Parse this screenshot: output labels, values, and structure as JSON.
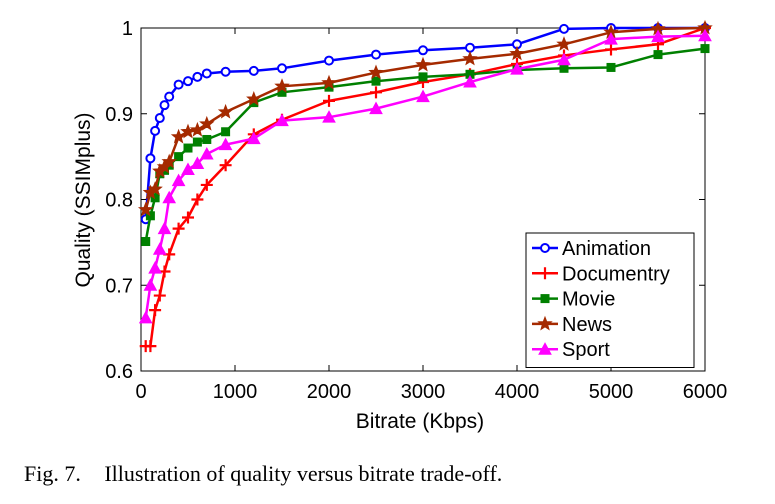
{
  "caption": {
    "label": "Fig. 7.",
    "text": "Illustration of quality versus bitrate trade-off."
  },
  "chart_data": {
    "type": "line",
    "title": "",
    "xlabel": "Bitrate (Kbps)",
    "ylabel": "Quality (SSIMplus)",
    "xlim": [
      0,
      6000
    ],
    "ylim": [
      0.6,
      1
    ],
    "xticks": [
      0,
      1000,
      2000,
      3000,
      4000,
      5000,
      6000
    ],
    "yticks": [
      0.6,
      0.7,
      0.8,
      0.9,
      1
    ],
    "xtick_labels": [
      "0",
      "1000",
      "2000",
      "3000",
      "4000",
      "5000",
      "6000"
    ],
    "ytick_labels": [
      "0.6",
      "0.7",
      "0.8",
      "0.9",
      "1"
    ],
    "grid": false,
    "legend_position": "bottom-right",
    "series": [
      {
        "name": "Animation",
        "color": "#0000ff",
        "marker": "circle",
        "x": [
          50,
          100,
          150,
          200,
          250,
          300,
          400,
          500,
          600,
          700,
          900,
          1200,
          1500,
          2000,
          2500,
          3000,
          3500,
          4000,
          4500,
          5000,
          5500,
          6000
        ],
        "y": [
          0.777,
          0.848,
          0.88,
          0.895,
          0.91,
          0.92,
          0.934,
          0.938,
          0.943,
          0.947,
          0.949,
          0.95,
          0.953,
          0.962,
          0.969,
          0.974,
          0.977,
          0.981,
          0.999,
          1.0,
          1.0,
          1.0
        ]
      },
      {
        "name": "Documentry",
        "color": "#ff0000",
        "marker": "plus",
        "x": [
          50,
          100,
          150,
          200,
          250,
          300,
          400,
          500,
          600,
          700,
          900,
          1200,
          1500,
          2000,
          2500,
          3000,
          3500,
          4000,
          4500,
          5000,
          5500,
          6000
        ],
        "y": [
          0.629,
          0.629,
          0.671,
          0.688,
          0.716,
          0.736,
          0.766,
          0.779,
          0.8,
          0.817,
          0.84,
          0.876,
          0.893,
          0.915,
          0.925,
          0.937,
          0.946,
          0.958,
          0.968,
          0.975,
          0.981,
          1.0
        ]
      },
      {
        "name": "Movie",
        "color": "#008000",
        "marker": "square",
        "x": [
          50,
          100,
          150,
          200,
          250,
          300,
          400,
          500,
          600,
          700,
          900,
          1200,
          1500,
          2000,
          2500,
          3000,
          3500,
          4000,
          4500,
          5000,
          5500,
          6000
        ],
        "y": [
          0.751,
          0.781,
          0.802,
          0.83,
          0.834,
          0.84,
          0.85,
          0.86,
          0.867,
          0.87,
          0.879,
          0.913,
          0.925,
          0.931,
          0.938,
          0.943,
          0.946,
          0.951,
          0.953,
          0.954,
          0.969,
          0.976
        ]
      },
      {
        "name": "News",
        "color": "#a52a00",
        "marker": "star",
        "x": [
          50,
          100,
          150,
          200,
          250,
          300,
          400,
          500,
          600,
          700,
          900,
          1200,
          1500,
          2000,
          2500,
          3000,
          3500,
          4000,
          4500,
          5000,
          5500,
          6000
        ],
        "y": [
          0.788,
          0.808,
          0.812,
          0.833,
          0.838,
          0.844,
          0.873,
          0.879,
          0.881,
          0.888,
          0.902,
          0.917,
          0.932,
          0.936,
          0.948,
          0.957,
          0.964,
          0.97,
          0.981,
          0.995,
          0.999,
          1.0
        ]
      },
      {
        "name": "Sport",
        "color": "#ff00ff",
        "marker": "triangle",
        "x": [
          50,
          100,
          150,
          200,
          250,
          300,
          400,
          500,
          600,
          700,
          900,
          1200,
          1500,
          2000,
          2500,
          3000,
          3500,
          4000,
          4500,
          5000,
          5500,
          6000
        ],
        "y": [
          0.662,
          0.7,
          0.72,
          0.742,
          0.766,
          0.802,
          0.822,
          0.835,
          0.842,
          0.853,
          0.864,
          0.871,
          0.892,
          0.896,
          0.906,
          0.92,
          0.937,
          0.952,
          0.963,
          0.987,
          0.99,
          0.991
        ]
      }
    ]
  }
}
